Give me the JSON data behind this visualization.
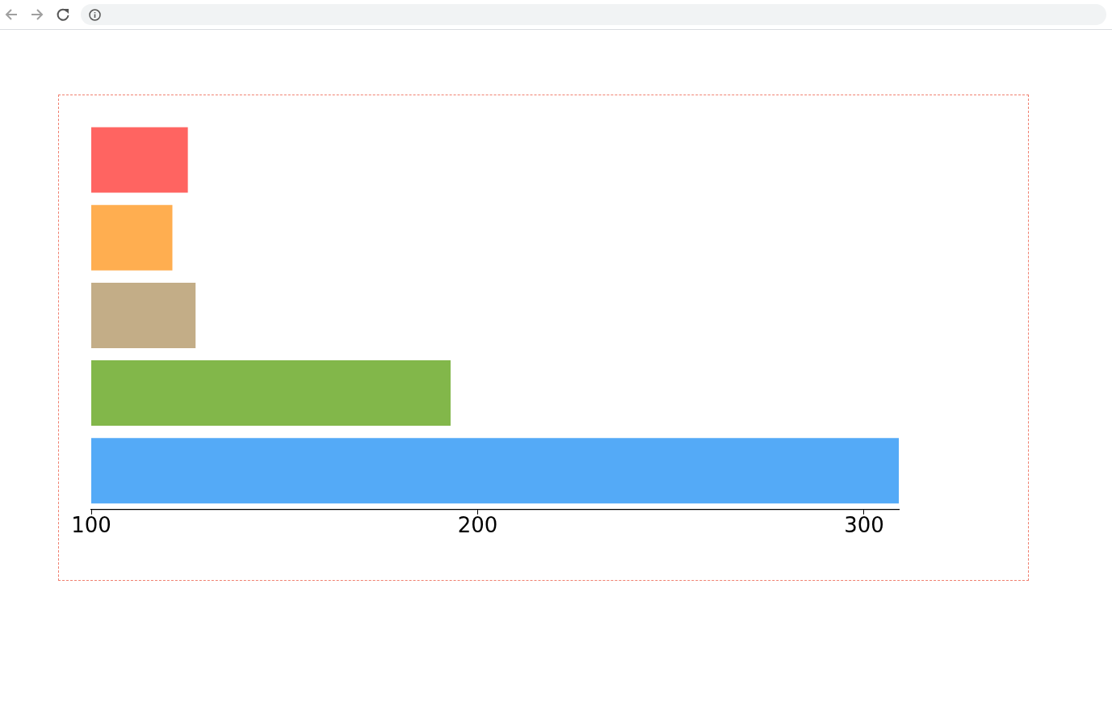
{
  "chart_data": {
    "type": "bar",
    "orientation": "horizontal",
    "categories": [
      null,
      null,
      null,
      null,
      null
    ],
    "values": [
      125,
      121,
      127,
      193,
      309
    ],
    "colors": [
      "#ff6461",
      "#ffae50",
      "#c3ad87",
      "#82b74a",
      "#54aaf7"
    ],
    "xlim": [
      100,
      309
    ],
    "xticks": [
      100,
      200,
      300
    ],
    "grid": false,
    "legend": false,
    "tick_labels": "x"
  }
}
